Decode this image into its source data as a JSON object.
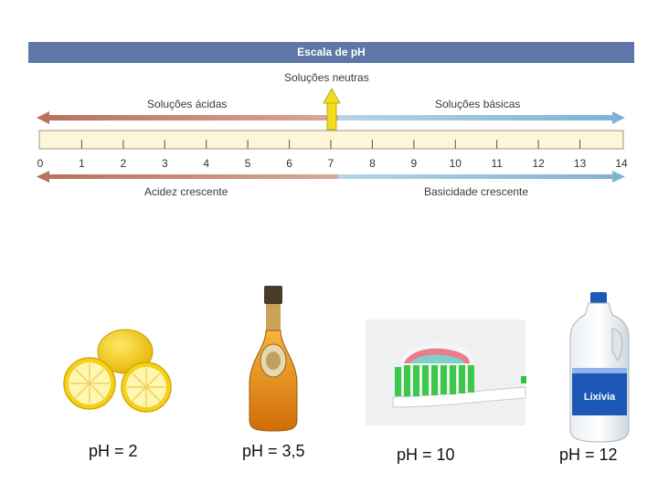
{
  "scale": {
    "title": "Escala de pH",
    "neutral_label": "Soluções neutras",
    "acid_label": "Soluções ácidas",
    "basic_label": "Soluções básicas",
    "acidity_label": "Acidez crescente",
    "basicity_label": "Basicidade crescente",
    "ticks": [
      "0",
      "1",
      "2",
      "3",
      "4",
      "5",
      "6",
      "7",
      "8",
      "9",
      "10",
      "11",
      "12",
      "13",
      "14"
    ],
    "colors": {
      "acid": "#c9836f",
      "basic": "#8ab9d6",
      "neutral": "#f2dc1e",
      "bar": "#fdf6d8",
      "banner": "#5e77a8"
    }
  },
  "examples": [
    {
      "icon": "lemon-icon",
      "caption": "pH = 2"
    },
    {
      "icon": "liquor-bottle-icon",
      "caption": "pH = 3,5"
    },
    {
      "icon": "toothbrush-icon",
      "caption": "pH = 10"
    },
    {
      "icon": "bleach-bottle-icon",
      "caption": "pH = 12"
    }
  ]
}
